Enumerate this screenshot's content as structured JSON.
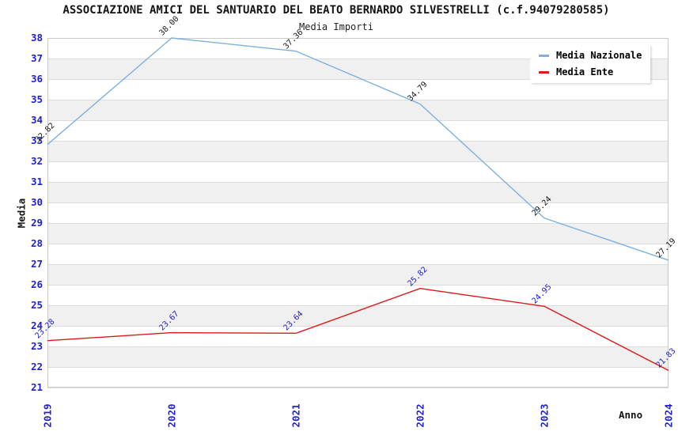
{
  "header": {
    "title": "ASSOCIAZIONE AMICI DEL SANTUARIO DEL BEATO BERNARDO SILVESTRELLI (c.f.94079280585)",
    "subtitle": "Media Importi"
  },
  "legend": {
    "items": [
      {
        "label": "Media Nazionale",
        "color": "#7cb0e2"
      },
      {
        "label": "Media Ente",
        "color": "#e01818"
      }
    ]
  },
  "axes": {
    "y_title": "Media",
    "x_title": "Anno",
    "y_ticks": [
      21,
      22,
      23,
      24,
      25,
      26,
      27,
      28,
      29,
      30,
      31,
      32,
      33,
      34,
      35,
      36,
      37,
      38
    ],
    "x_ticks": [
      "2019",
      "2020",
      "2021",
      "2022",
      "2023",
      "2024"
    ],
    "tick_label_color": "#2222cc"
  },
  "chart_data": {
    "type": "line",
    "title": "Media Importi",
    "categories": [
      "2019",
      "2020",
      "2021",
      "2022",
      "2023",
      "2024"
    ],
    "series": [
      {
        "name": "Media Nazionale",
        "color": "#7cb0e2",
        "label_color": "#1a1a1a",
        "values": [
          32.82,
          38.0,
          37.36,
          34.79,
          29.24,
          27.19
        ]
      },
      {
        "name": "Media Ente",
        "color": "#e01818",
        "label_color": "#2222cc",
        "values": [
          23.28,
          23.67,
          23.64,
          25.82,
          24.95,
          21.83
        ]
      }
    ],
    "xlabel": "Anno",
    "ylabel": "Media",
    "ylim": [
      21,
      38
    ],
    "y_tick_step": 1,
    "grid": true,
    "banded_background": true,
    "band_colors": [
      "#ffffff",
      "#f0f0f0"
    ],
    "gridline_color": "#dcdcdc",
    "border_color": "#c9c9c9",
    "legend_position": "top-right",
    "value_label_decimals": 2,
    "value_label_rotation_deg": -45
  }
}
